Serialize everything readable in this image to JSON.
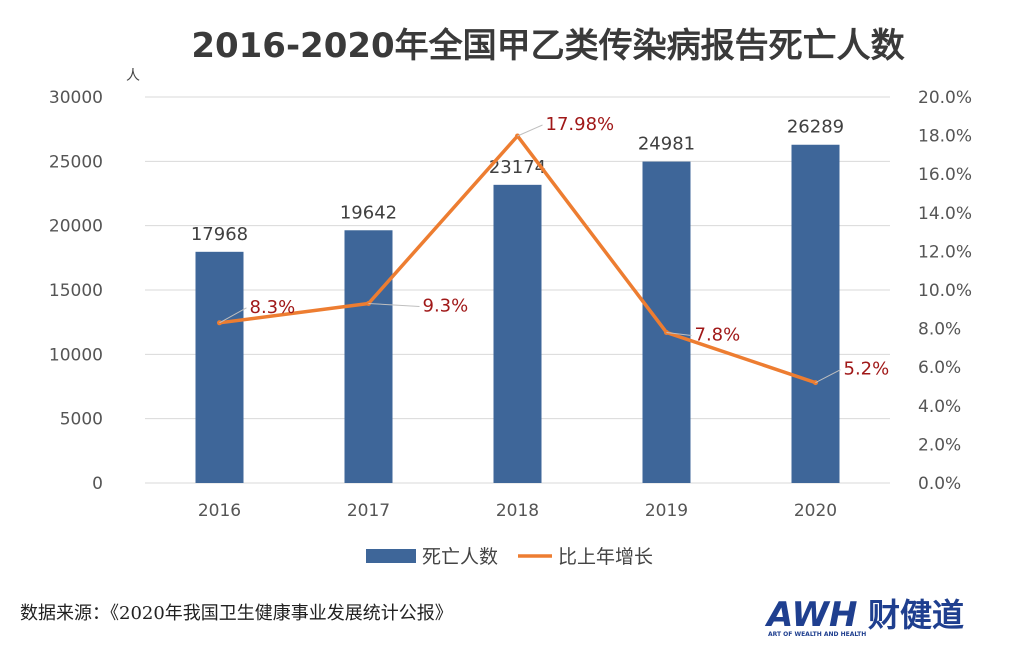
{
  "chart_data": {
    "type": "bar+line",
    "title": "2016-2020年全国甲乙类传染病报告死亡人数",
    "categories": [
      "2016",
      "2017",
      "2018",
      "2019",
      "2020"
    ],
    "series": [
      {
        "name": "死亡人数",
        "type": "bar",
        "axis": "left",
        "values": [
          17968,
          19642,
          23174,
          24981,
          26289
        ],
        "labels": [
          "17968",
          "19642",
          "23174",
          "24981",
          "26289"
        ]
      },
      {
        "name": "比上年增长",
        "type": "line",
        "axis": "right",
        "values": [
          8.3,
          9.3,
          17.98,
          7.8,
          5.2
        ],
        "labels": [
          "8.3%",
          "9.3%",
          "17.98%",
          "7.8%",
          "5.2%"
        ]
      }
    ],
    "y_left": {
      "unit": "人",
      "ylim": [
        0,
        30000
      ],
      "ticks": [
        "0",
        "5000",
        "10000",
        "15000",
        "20000",
        "25000",
        "30000"
      ]
    },
    "y_right": {
      "ylim": [
        0,
        20
      ],
      "ticks": [
        "0.0%",
        "2.0%",
        "4.0%",
        "6.0%",
        "8.0%",
        "10.0%",
        "12.0%",
        "14.0%",
        "16.0%",
        "18.0%",
        "20.0%"
      ]
    },
    "grid": true,
    "legend_position": "bottom"
  },
  "colors": {
    "bar": "#3e6699",
    "line": "#ed7d31",
    "label_red": "#a01818",
    "grid": "#d9d9d9",
    "logo_blue": "#1f3f8f",
    "logo_orange": "#f08a1c"
  },
  "source": "数据来源：《2020年我国卫生健康事业发展统计公报》",
  "logo": {
    "main": "AWH",
    "cn": "财健道",
    "sub": "ART OF WEALTH AND HEALTH"
  }
}
